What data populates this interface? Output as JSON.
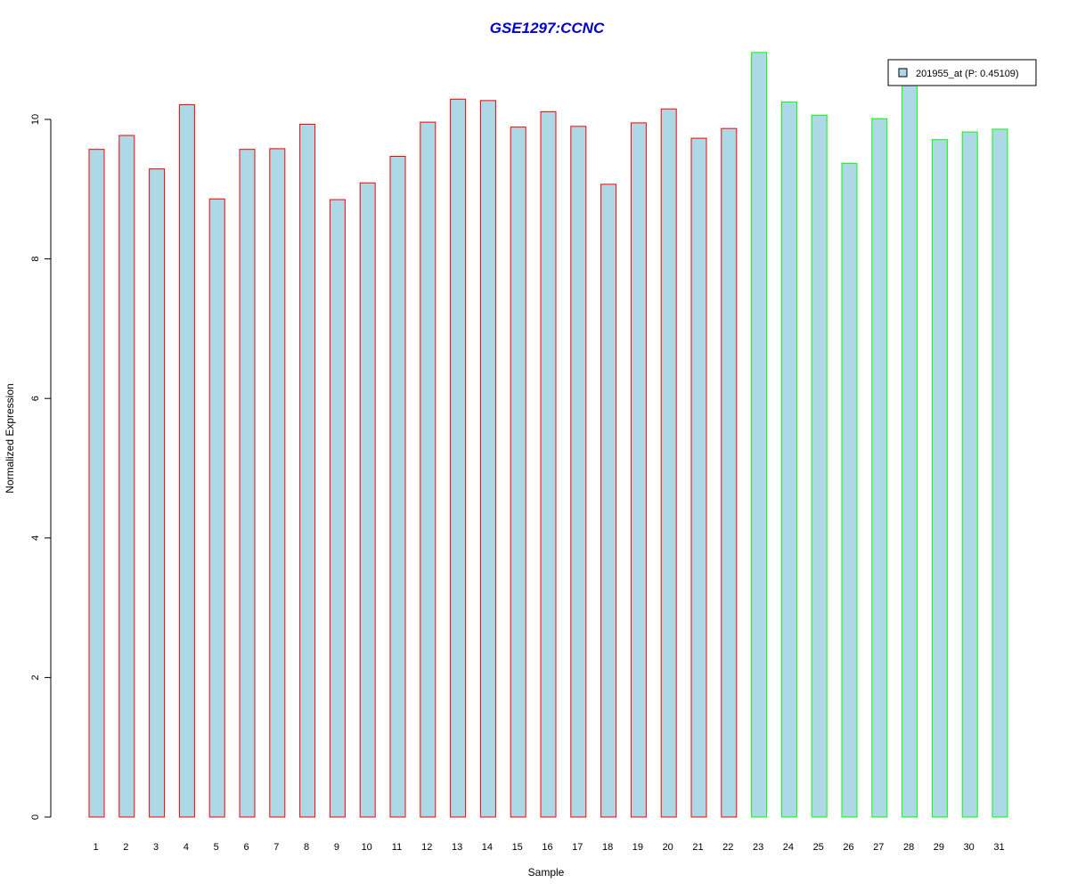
{
  "chart_data": {
    "type": "bar",
    "title": "GSE1297:CCNC",
    "xlabel": "Sample",
    "ylabel": "Normalized Expression",
    "ylim": [
      0,
      11
    ],
    "yticks": [
      "0",
      "2",
      "4",
      "6",
      "8",
      "10"
    ],
    "categories": [
      "1",
      "2",
      "3",
      "4",
      "5",
      "6",
      "7",
      "8",
      "9",
      "10",
      "11",
      "12",
      "13",
      "14",
      "15",
      "16",
      "17",
      "18",
      "19",
      "20",
      "21",
      "22",
      "23",
      "24",
      "25",
      "26",
      "27",
      "28",
      "29",
      "30",
      "31"
    ],
    "values": [
      9.57,
      9.77,
      9.29,
      10.21,
      8.86,
      9.57,
      9.58,
      9.93,
      8.85,
      9.09,
      9.47,
      9.96,
      10.29,
      10.27,
      9.89,
      10.11,
      9.9,
      9.07,
      9.95,
      10.15,
      9.73,
      9.87,
      10.96,
      10.25,
      10.06,
      9.37,
      10.01,
      10.6,
      9.71,
      9.82,
      9.86
    ],
    "groups": [
      "red",
      "red",
      "red",
      "red",
      "red",
      "red",
      "red",
      "red",
      "red",
      "red",
      "red",
      "red",
      "red",
      "red",
      "red",
      "red",
      "red",
      "red",
      "red",
      "red",
      "red",
      "red",
      "green",
      "green",
      "green",
      "green",
      "green",
      "green",
      "green",
      "green",
      "green"
    ],
    "fill_color": "#add8e6",
    "border_colors": {
      "red": "#ff0000",
      "green": "#00ff00"
    },
    "legend": {
      "label": "201955_at (P: 0.45109)",
      "placement": "top-right"
    },
    "grid": false
  }
}
